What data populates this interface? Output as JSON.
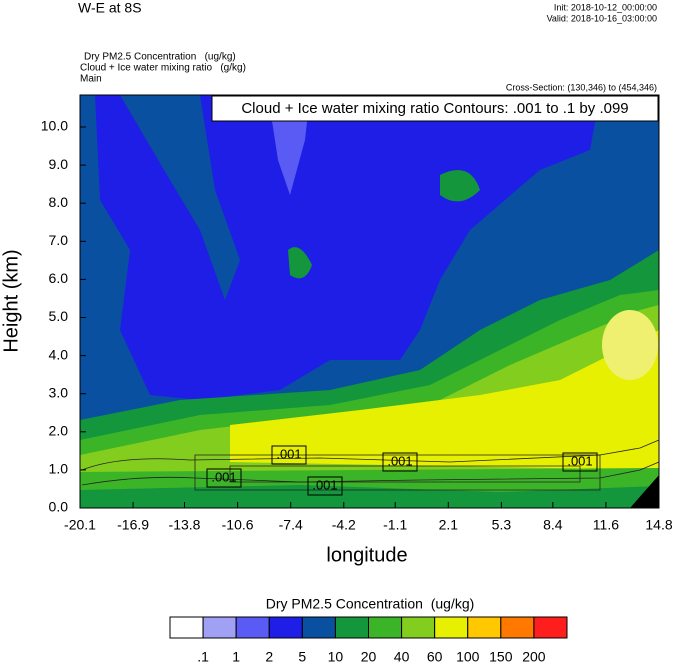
{
  "chart_data": {
    "type": "contour",
    "title": "W-E at 8S",
    "init": "Init: 2018-10-12_00:00:00",
    "valid": "Valid: 2018-10-16_03:00:00",
    "subtitles": [
      "Dry PM2.5 Concentration   (ug/kg)",
      "Cloud + Ice water mixing ratio   (g/kg)",
      "Main"
    ],
    "cross_section": "Cross-Section: (130,346) to (454,346)",
    "contour_note": "Cloud + Ice water mixing ratio Contours: .001 to .1 by .099",
    "xlabel": "longitude",
    "ylabel": "Height (km)",
    "xlim": [
      -20.1,
      14.8
    ],
    "xticks": [
      -20.1,
      -16.9,
      -13.8,
      -10.6,
      -7.4,
      -4.2,
      -1.1,
      2.1,
      5.3,
      8.4,
      11.6,
      14.8
    ],
    "ylim": [
      0,
      10.84
    ],
    "yticks": [
      {
        "value": 0,
        "label": "0.0"
      },
      {
        "value": 1,
        "label": "1.0"
      },
      {
        "value": 2,
        "label": "2.0"
      },
      {
        "value": 3,
        "label": "3.0"
      },
      {
        "value": 4,
        "label": "4.0"
      },
      {
        "value": 5,
        "label": "5.0"
      },
      {
        "value": 6,
        "label": "6.0"
      },
      {
        "value": 7,
        "label": "7.0"
      },
      {
        "value": 8,
        "label": "8.0"
      },
      {
        "value": 9,
        "label": "9.0"
      },
      {
        "value": 10,
        "label": "10.0"
      }
    ],
    "contour_labels": [
      ".001",
      ".001",
      ".001",
      ".001",
      ".001"
    ],
    "colorbar": {
      "title": "Dry PM2.5 Concentration  (ug/kg)",
      "levels": [
        {
          "value": 0.1,
          "label": ".1"
        },
        1,
        2,
        5,
        10,
        20,
        40,
        60,
        100,
        150,
        200
      ],
      "colors": [
        "#ffffff",
        "#a0a0f5",
        "#5a5af5",
        "#1e1ee6",
        "#0a50a0",
        "#14963c",
        "#3cb428",
        "#82cd1e",
        "#e6f000",
        "#ffc800",
        "#ff7800",
        "#ff1e1e"
      ]
    }
  }
}
